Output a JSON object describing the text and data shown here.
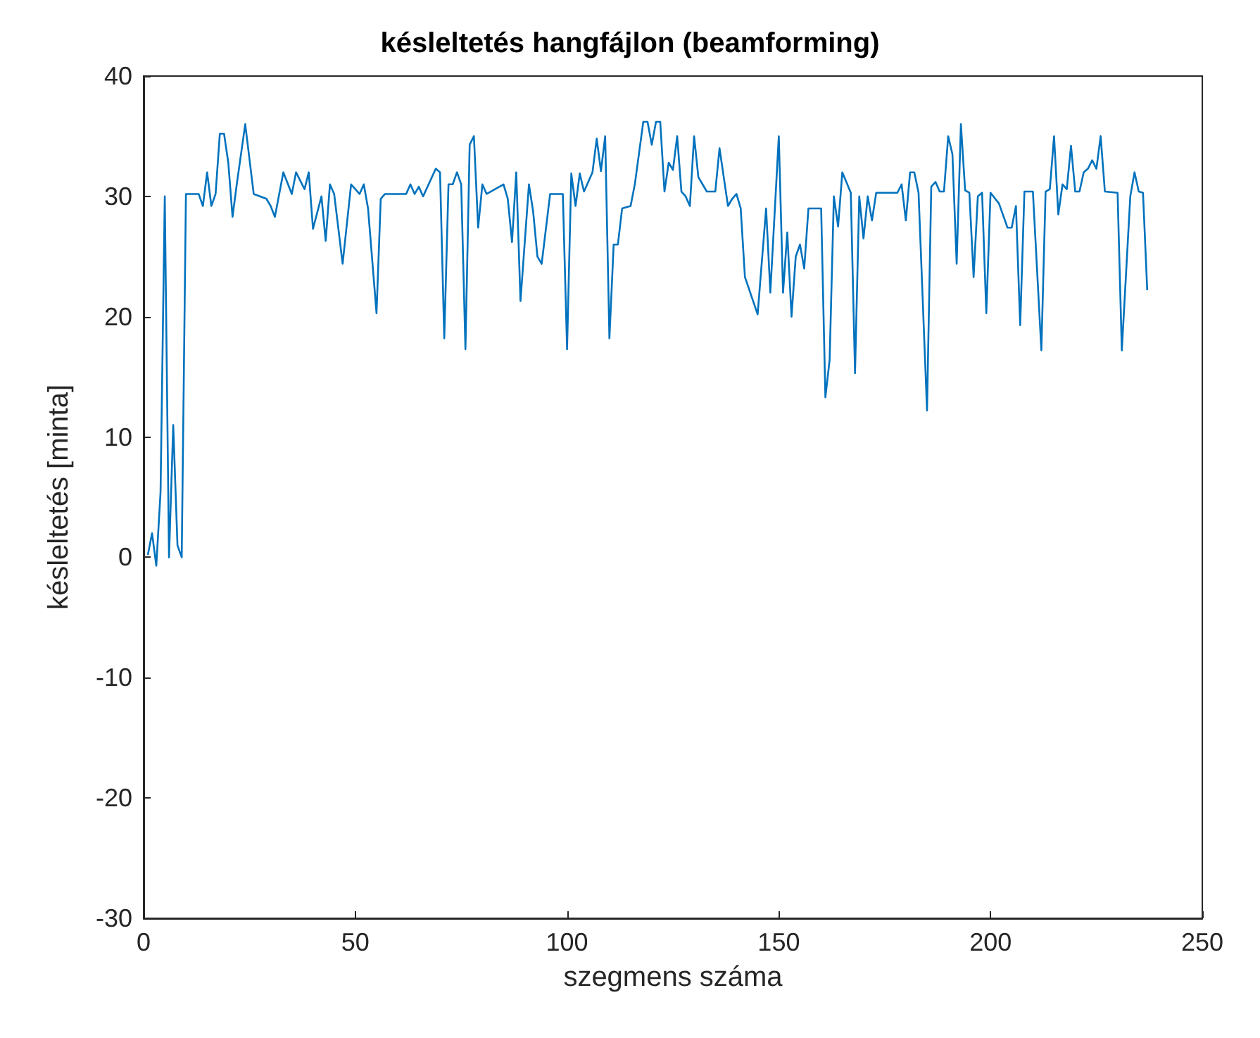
{
  "chart_data": {
    "type": "line",
    "title": "késleltetés hangfájlon (beamforming)",
    "xlabel": "szegmens száma",
    "ylabel": "késleltetés [minta]",
    "xlim": [
      0,
      250
    ],
    "xticks": [
      0,
      50,
      100,
      150,
      200,
      250
    ],
    "ylim": [
      -30,
      40
    ],
    "yticks": [
      -30,
      -20,
      -10,
      0,
      10,
      20,
      30,
      40
    ],
    "grid": false,
    "series": [
      {
        "color": "#0072bd",
        "x": [
          1,
          2,
          3,
          4,
          5,
          6,
          7,
          8,
          9,
          10,
          13,
          14,
          15,
          16,
          17,
          18,
          19,
          20,
          21,
          22,
          24,
          26,
          29,
          30,
          31,
          33,
          35,
          36,
          38,
          39,
          40,
          42,
          43,
          44,
          45,
          47,
          49,
          51,
          52,
          53,
          55,
          56,
          57,
          62,
          63,
          64,
          65,
          66,
          69,
          70,
          71,
          72,
          73,
          74,
          75,
          76,
          77,
          78,
          79,
          80,
          81,
          85,
          86,
          87,
          88,
          89,
          91,
          92,
          93,
          94,
          96,
          99,
          100,
          101,
          102,
          103,
          104,
          106,
          107,
          108,
          109,
          110,
          111,
          112,
          113,
          115,
          116,
          118,
          119,
          120,
          121,
          122,
          123,
          124,
          125,
          126,
          127,
          128,
          129,
          130,
          131,
          132,
          133,
          135,
          136,
          138,
          139,
          140,
          141,
          142,
          145,
          147,
          148,
          150,
          151,
          152,
          153,
          154,
          155,
          156,
          157,
          160,
          161,
          162,
          163,
          164,
          165,
          167,
          168,
          169,
          170,
          171,
          172,
          173,
          178,
          179,
          180,
          181,
          182,
          183,
          185,
          186,
          187,
          188,
          189,
          190,
          191,
          192,
          193,
          194,
          195,
          196,
          197,
          198,
          199,
          200,
          202,
          204,
          205,
          206,
          207,
          208,
          210,
          212,
          213,
          214,
          215,
          216,
          217,
          218,
          219,
          220,
          221,
          222,
          223,
          224,
          225,
          226,
          227,
          230,
          231,
          233,
          234,
          235,
          236,
          237
        ],
        "values": [
          0.2,
          2,
          -0.7,
          5.4,
          30,
          0,
          11,
          1,
          0,
          30.2,
          30.2,
          29.2,
          32,
          29.2,
          30.2,
          35.2,
          35.2,
          32.8,
          28.3,
          31,
          36,
          30.2,
          29.8,
          29.2,
          28.3,
          32,
          30.2,
          32,
          30.6,
          32,
          27.3,
          30,
          26.3,
          31,
          30.2,
          24.4,
          31,
          30.2,
          31,
          29,
          20.3,
          29.8,
          30.2,
          30.2,
          31,
          30.2,
          30.8,
          30,
          32.3,
          32,
          18.2,
          31,
          31,
          32,
          31,
          17.3,
          34.3,
          35,
          27.4,
          31,
          30.2,
          31,
          29.8,
          26.2,
          32,
          21.3,
          31,
          28.7,
          25,
          24.4,
          30.2,
          30.2,
          17.3,
          31.9,
          29.2,
          31.9,
          30.4,
          32,
          34.8,
          32.1,
          35,
          18.2,
          26,
          26,
          29,
          29.2,
          31,
          36.2,
          36.2,
          34.3,
          36.2,
          36.2,
          30.4,
          32.8,
          32.2,
          35,
          30.4,
          30,
          29.2,
          35,
          31.6,
          31,
          30.4,
          30.4,
          34,
          29.2,
          29.8,
          30.2,
          29,
          23.3,
          20.2,
          29,
          22,
          35,
          22,
          27,
          20,
          25,
          26,
          24,
          29,
          29,
          13.3,
          16.4,
          30,
          27.5,
          32,
          30.3,
          15.3,
          30,
          26.5,
          30,
          28,
          30.3,
          30.3,
          31,
          28,
          32,
          32,
          30.3,
          12.2,
          30.8,
          31.2,
          30.4,
          30.4,
          35,
          33.5,
          24.4,
          36,
          30.5,
          30.3,
          23.3,
          30,
          30.3,
          20.3,
          30.3,
          29.4,
          27.4,
          27.4,
          29.2,
          19.3,
          30.4,
          30.4,
          17.2,
          30.4,
          30.6,
          35,
          28.5,
          31,
          30.6,
          34.2,
          30.4,
          30.4,
          32,
          32.3,
          33,
          32.3,
          35,
          30.4,
          30.3,
          17.2,
          30,
          32,
          30.4,
          30.3,
          22.2
        ]
      }
    ]
  }
}
